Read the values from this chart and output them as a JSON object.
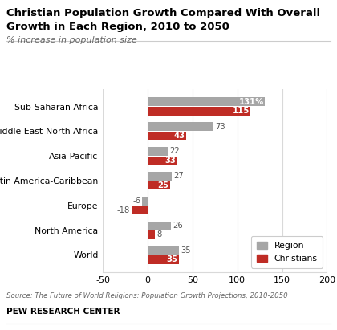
{
  "title_line1": "Christian Population Growth Compared With Overall",
  "title_line2": "Growth in Each Region, 2010 to 2050",
  "subtitle": "% increase in population size",
  "categories": [
    "Sub-Saharan Africa",
    "Middle East-North Africa",
    "Asia-Pacific",
    "Latin America-Caribbean",
    "Europe",
    "North America",
    "World"
  ],
  "region_values": [
    131,
    73,
    22,
    27,
    -6,
    26,
    35
  ],
  "christian_values": [
    115,
    43,
    33,
    25,
    -18,
    8,
    35
  ],
  "region_color": "#a6a6a6",
  "christian_color": "#bf2c25",
  "bar_height": 0.35,
  "xlim": [
    -50,
    200
  ],
  "xticks": [
    -50,
    0,
    50,
    100,
    150,
    200
  ],
  "source_text": "Source: The Future of World Religions: Population Growth Projections, 2010-2050",
  "footer_text": "PEW RESEARCH CENTER",
  "legend_labels": [
    "Region",
    "Christians"
  ],
  "label_configs": [
    [
      0,
      131,
      true,
      "131%",
      true
    ],
    [
      0,
      115,
      false,
      "115",
      true
    ],
    [
      1,
      73,
      true,
      "73",
      false
    ],
    [
      1,
      43,
      false,
      "43",
      true
    ],
    [
      2,
      22,
      true,
      "22",
      false
    ],
    [
      2,
      33,
      false,
      "33",
      true
    ],
    [
      3,
      27,
      true,
      "27",
      false
    ],
    [
      3,
      25,
      false,
      "25",
      true
    ],
    [
      4,
      -6,
      true,
      "-6",
      false
    ],
    [
      4,
      -18,
      false,
      "-18",
      false
    ],
    [
      5,
      26,
      true,
      "26",
      false
    ],
    [
      5,
      8,
      false,
      "8",
      false
    ],
    [
      6,
      35,
      true,
      "35",
      false
    ],
    [
      6,
      35,
      false,
      "35",
      true
    ]
  ]
}
